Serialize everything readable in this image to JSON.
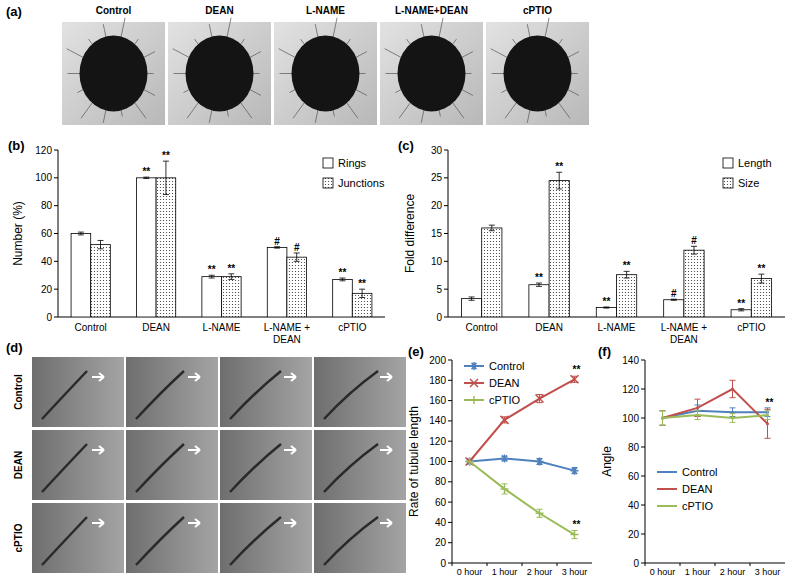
{
  "chart_data": [
    {
      "type": "image",
      "label": "(a)",
      "columns": [
        "Control",
        "DEAN",
        "L-NAME",
        "L-NAME+DEAN",
        "cPTIO"
      ]
    },
    {
      "type": "bar",
      "label": "(b)",
      "y_label": "Number (%)",
      "categories": [
        "Control",
        "DEAN",
        "L-NAME",
        "L-NAME + DEAN",
        "cPTIO"
      ],
      "series": [
        {
          "name": "Rings",
          "color": "#ffffff",
          "values": [
            60,
            100,
            29,
            50,
            27
          ],
          "errors": [
            1,
            0.5,
            1,
            0.5,
            1
          ],
          "annotations": [
            null,
            "**",
            "**",
            "#",
            "**"
          ]
        },
        {
          "name": "Junctions",
          "color": "#ffffff",
          "values": [
            52,
            100,
            29,
            43,
            17
          ],
          "errors": [
            3,
            12,
            2,
            3,
            3
          ],
          "annotations": [
            null,
            "**",
            "**",
            "#",
            "**"
          ]
        }
      ],
      "ylim": [
        0,
        120
      ],
      "yticks": [
        0,
        20,
        40,
        60,
        80,
        100,
        120
      ],
      "legend": "upper right"
    },
    {
      "type": "bar",
      "label": "(c)",
      "y_label": "Fold difference",
      "categories": [
        "Control",
        "DEAN",
        "L-NAME",
        "L-NAME + DEAN",
        "cPTIO"
      ],
      "series": [
        {
          "name": "Length",
          "color": "#ffffff",
          "values": [
            3.3,
            5.8,
            1.7,
            3.1,
            1.3
          ],
          "errors": [
            0.3,
            0.3,
            0.1,
            0.1,
            0.2
          ],
          "annotations": [
            null,
            "**",
            "**",
            "#",
            "**"
          ]
        },
        {
          "name": "Size",
          "color": "#ffffff",
          "values": [
            16,
            24.5,
            7.6,
            12,
            6.9
          ],
          "errors": [
            0.5,
            1.5,
            0.6,
            0.7,
            0.8
          ],
          "annotations": [
            null,
            "**",
            "**",
            "#",
            "**"
          ]
        }
      ],
      "ylim": [
        0,
        30
      ],
      "yticks": [
        0,
        5,
        10,
        15,
        20,
        25,
        30
      ],
      "legend": "upper right"
    },
    {
      "type": "image",
      "label": "(d)",
      "rows": [
        "Control",
        "DEAN",
        "cPTIO"
      ]
    },
    {
      "type": "line",
      "label": "(e)",
      "y_label": "Rate of tubule length",
      "categories": [
        "0 hour",
        "1 hour",
        "2 hour",
        "3 hour"
      ],
      "series": [
        {
          "name": "Control",
          "color": "#4f81bd",
          "marker": "star",
          "values": [
            100,
            103,
            100,
            91
          ],
          "errors": [
            0,
            2,
            3,
            3
          ]
        },
        {
          "name": "DEAN",
          "color": "#c0504d",
          "marker": "x",
          "values": [
            100,
            141,
            162,
            181
          ],
          "errors": [
            0,
            3,
            4,
            3
          ],
          "annotations": [
            null,
            null,
            null,
            "**"
          ]
        },
        {
          "name": "cPTIO",
          "color": "#9bbb59",
          "marker": "plus",
          "values": [
            100,
            73,
            49,
            28
          ],
          "errors": [
            0,
            5,
            4,
            4
          ],
          "annotations": [
            null,
            null,
            null,
            "**"
          ]
        }
      ],
      "ylim": [
        0,
        200
      ],
      "yticks": [
        0,
        20,
        40,
        60,
        80,
        100,
        120,
        140,
        160,
        180,
        200
      ],
      "legend": "upper left"
    },
    {
      "type": "line",
      "label": "(f)",
      "y_label": "Angle",
      "categories": [
        "0 hour",
        "1 hour",
        "2 hour",
        "3 hour"
      ],
      "series": [
        {
          "name": "Control",
          "color": "#4f81bd",
          "marker": "none",
          "values": [
            100,
            105,
            104,
            104
          ],
          "errors": [
            5,
            4,
            3,
            3
          ]
        },
        {
          "name": "DEAN",
          "color": "#c0504d",
          "marker": "none",
          "values": [
            100,
            107,
            120,
            96
          ],
          "errors": [
            5,
            6,
            6,
            10
          ],
          "annotations": [
            null,
            null,
            null,
            "**"
          ]
        },
        {
          "name": "cPTIO",
          "color": "#9bbb59",
          "marker": "none",
          "values": [
            100,
            102,
            100,
            102
          ],
          "errors": [
            5,
            3,
            3,
            3
          ]
        }
      ],
      "ylim": [
        0,
        140
      ],
      "yticks": [
        0,
        20,
        40,
        60,
        80,
        100,
        120,
        140
      ],
      "legend": "lower left"
    }
  ]
}
